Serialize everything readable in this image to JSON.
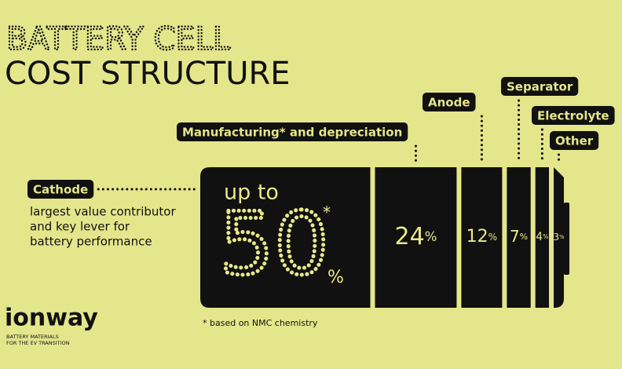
{
  "title": [
    "BATTERY CELL",
    "COST STRUCTURE"
  ],
  "segments": [
    {
      "name": "Cathode",
      "prefix": "up to",
      "value": 50,
      "unit": "%",
      "note_mark": "*",
      "description": [
        "largest value contributor",
        "and key lever for",
        "battery performance"
      ]
    },
    {
      "name": "Manufacturing* and depreciation",
      "value": 24,
      "unit": "%"
    },
    {
      "name": "Anode",
      "value": 12,
      "unit": "%"
    },
    {
      "name": "Separator",
      "value": 7,
      "unit": "%"
    },
    {
      "name": "Electrolyte",
      "value": 4,
      "unit": "%"
    },
    {
      "name": "Other",
      "value": 3,
      "unit": "%"
    }
  ],
  "footnote": "* based on NMC chemistry",
  "brand": {
    "name": "ionway",
    "tagline": [
      "BATTERY MATERIALS",
      "FOR THE EV TRANSITION"
    ]
  }
}
